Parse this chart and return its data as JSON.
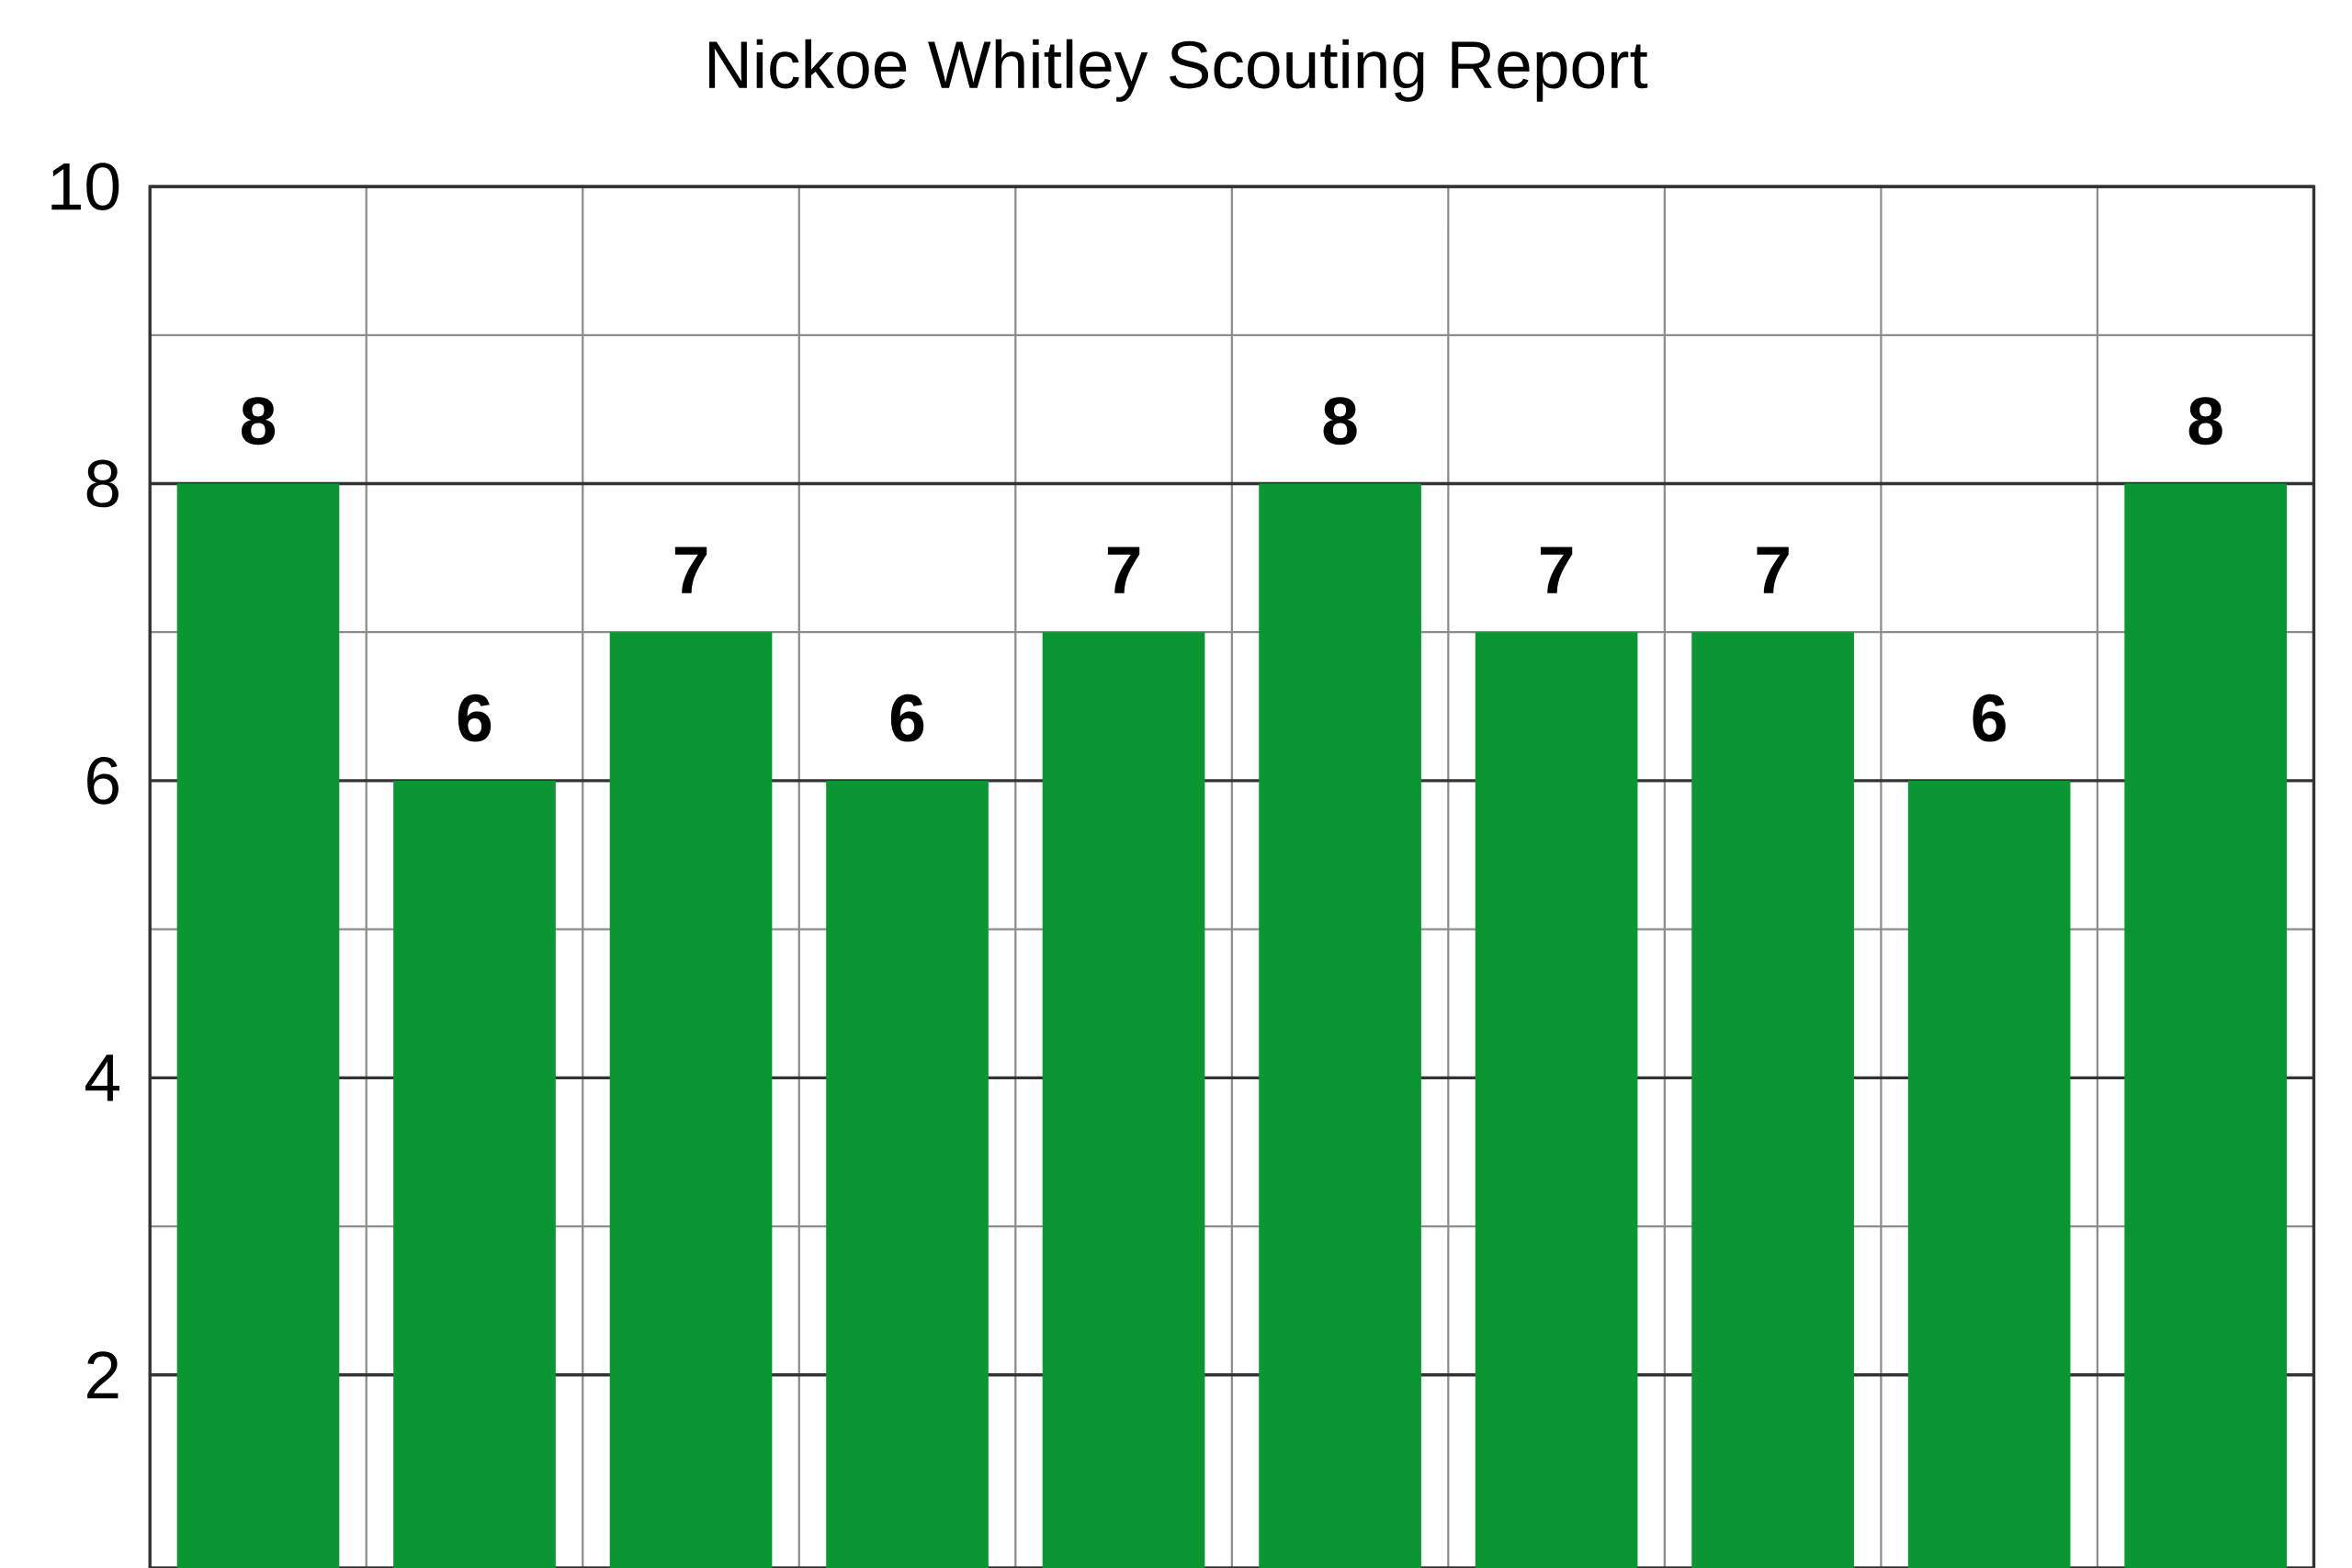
{
  "chart_data": {
    "type": "bar",
    "title": "Nickoe Whitley Scouting Report",
    "categories": [
      null,
      null,
      null,
      null,
      null,
      null,
      null,
      null,
      null,
      null
    ],
    "values": [
      8,
      6,
      7,
      6,
      7,
      8,
      7,
      7,
      6,
      8
    ],
    "color": "#0a9632",
    "ylim": [
      0.7,
      10
    ],
    "yticks": [
      2,
      4,
      6,
      8,
      10
    ],
    "grid": true,
    "data_labels": true
  }
}
